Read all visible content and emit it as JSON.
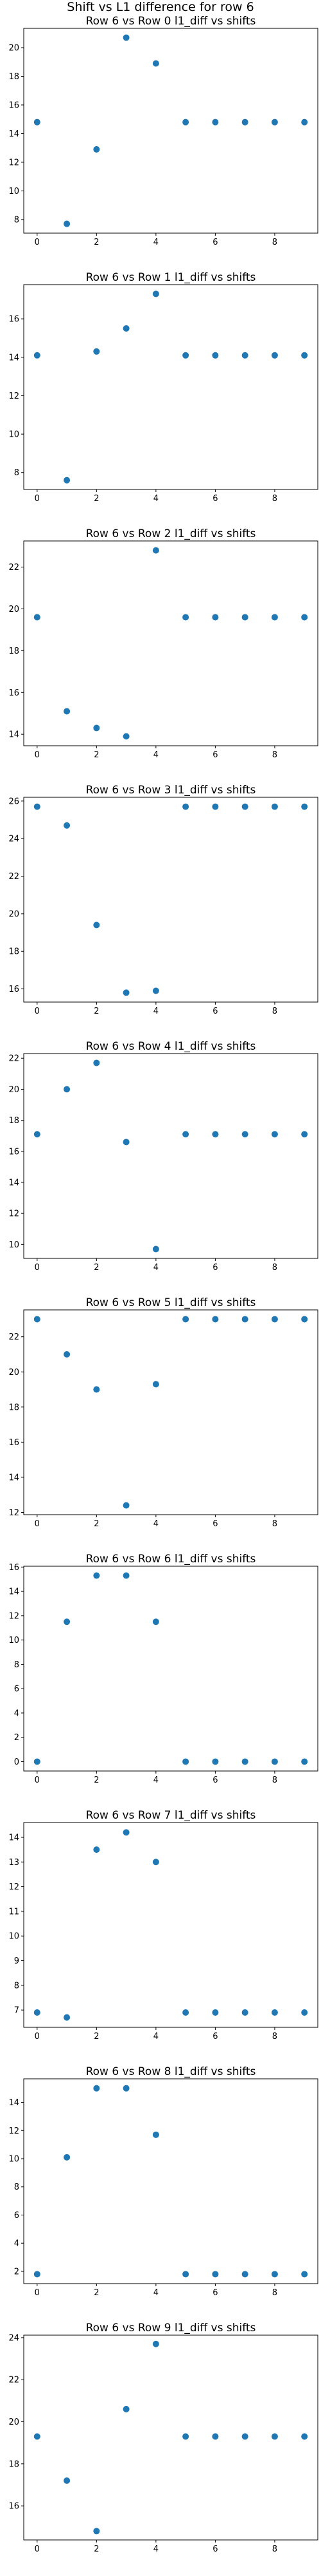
{
  "figure": {
    "suptitle": "Shift vs L1 difference for row 6"
  },
  "colors": {
    "marker": "#1f77b4",
    "axes": "#000000",
    "background": "#ffffff"
  },
  "chart_data": [
    {
      "type": "scatter",
      "title": "Row 6 vs Row 0 l1_diff vs shifts",
      "x": [
        0,
        1,
        2,
        3,
        4,
        5,
        6,
        7,
        8,
        9
      ],
      "y": [
        14.8,
        7.7,
        12.9,
        20.7,
        18.9,
        14.8,
        14.8,
        14.8,
        14.8,
        14.8
      ],
      "xticks": [
        0,
        2,
        4,
        6,
        8
      ],
      "yticks": [
        8,
        10,
        12,
        14,
        16,
        18,
        20
      ],
      "xlim": [
        -0.45,
        9.45
      ],
      "ylim": [
        7.05,
        21.35
      ],
      "grid": false
    },
    {
      "type": "scatter",
      "title": "Row 6 vs Row 1 l1_diff vs shifts",
      "x": [
        0,
        1,
        2,
        3,
        4,
        5,
        6,
        7,
        8,
        9
      ],
      "y": [
        14.1,
        7.6,
        14.3,
        15.5,
        17.3,
        14.1,
        14.1,
        14.1,
        14.1,
        14.1
      ],
      "xticks": [
        0,
        2,
        4,
        6,
        8
      ],
      "yticks": [
        8,
        10,
        12,
        14,
        16
      ],
      "xlim": [
        -0.45,
        9.45
      ],
      "ylim": [
        7.12,
        17.78
      ],
      "grid": false
    },
    {
      "type": "scatter",
      "title": "Row 6 vs Row 2 l1_diff vs shifts",
      "x": [
        0,
        1,
        2,
        3,
        4,
        5,
        6,
        7,
        8,
        9
      ],
      "y": [
        19.6,
        15.1,
        14.3,
        13.9,
        22.8,
        19.6,
        19.6,
        19.6,
        19.6,
        19.6
      ],
      "xticks": [
        0,
        2,
        4,
        6,
        8
      ],
      "yticks": [
        14,
        16,
        18,
        20,
        22
      ],
      "xlim": [
        -0.45,
        9.45
      ],
      "ylim": [
        13.45,
        23.25
      ],
      "grid": false
    },
    {
      "type": "scatter",
      "title": "Row 6 vs Row 3 l1_diff vs shifts",
      "x": [
        0,
        1,
        2,
        3,
        4,
        5,
        6,
        7,
        8,
        9
      ],
      "y": [
        25.7,
        24.7,
        19.4,
        15.8,
        15.9,
        25.7,
        25.7,
        25.7,
        25.7,
        25.7
      ],
      "xticks": [
        0,
        2,
        4,
        6,
        8
      ],
      "yticks": [
        16,
        18,
        20,
        22,
        24,
        26
      ],
      "xlim": [
        -0.45,
        9.45
      ],
      "ylim": [
        15.3,
        26.2
      ],
      "grid": false
    },
    {
      "type": "scatter",
      "title": "Row 6 vs Row 4 l1_diff vs shifts",
      "x": [
        0,
        1,
        2,
        3,
        4,
        5,
        6,
        7,
        8,
        9
      ],
      "y": [
        17.1,
        20.0,
        21.7,
        16.6,
        9.7,
        17.1,
        17.1,
        17.1,
        17.1,
        17.1
      ],
      "xticks": [
        0,
        2,
        4,
        6,
        8
      ],
      "yticks": [
        10,
        12,
        14,
        16,
        18,
        20,
        22
      ],
      "xlim": [
        -0.45,
        9.45
      ],
      "ylim": [
        9.1,
        22.3
      ],
      "grid": false
    },
    {
      "type": "scatter",
      "title": "Row 6 vs Row 5 l1_diff vs shifts",
      "x": [
        0,
        1,
        2,
        3,
        4,
        5,
        6,
        7,
        8,
        9
      ],
      "y": [
        23.0,
        21.0,
        19.0,
        12.4,
        19.3,
        23.0,
        23.0,
        23.0,
        23.0,
        23.0
      ],
      "xticks": [
        0,
        2,
        4,
        6,
        8
      ],
      "yticks": [
        12,
        14,
        16,
        18,
        20,
        22
      ],
      "xlim": [
        -0.45,
        9.45
      ],
      "ylim": [
        11.87,
        23.53
      ],
      "grid": false
    },
    {
      "type": "scatter",
      "title": "Row 6 vs Row 6 l1_diff vs shifts",
      "x": [
        0,
        1,
        2,
        3,
        4,
        5,
        6,
        7,
        8,
        9
      ],
      "y": [
        0.0,
        11.5,
        15.3,
        15.3,
        11.5,
        0.0,
        0.0,
        0.0,
        0.0,
        0.0
      ],
      "xticks": [
        0,
        2,
        4,
        6,
        8
      ],
      "yticks": [
        0,
        2,
        4,
        6,
        8,
        10,
        12,
        14,
        16
      ],
      "xlim": [
        -0.45,
        9.45
      ],
      "ylim": [
        -0.77,
        16.07
      ],
      "grid": false
    },
    {
      "type": "scatter",
      "title": "Row 6 vs Row 7 l1_diff vs shifts",
      "x": [
        0,
        1,
        2,
        3,
        4,
        5,
        6,
        7,
        8,
        9
      ],
      "y": [
        6.9,
        6.7,
        13.5,
        14.2,
        13.0,
        6.9,
        6.9,
        6.9,
        6.9,
        6.9
      ],
      "xticks": [
        0,
        2,
        4,
        6,
        8
      ],
      "yticks": [
        7,
        8,
        9,
        10,
        11,
        12,
        13,
        14
      ],
      "xlim": [
        -0.45,
        9.45
      ],
      "ylim": [
        6.3,
        14.6
      ],
      "grid": false
    },
    {
      "type": "scatter",
      "title": "Row 6 vs Row 8 l1_diff vs shifts",
      "x": [
        0,
        1,
        2,
        3,
        4,
        5,
        6,
        7,
        8,
        9
      ],
      "y": [
        1.8,
        10.1,
        15.0,
        15.0,
        11.7,
        1.8,
        1.8,
        1.8,
        1.8,
        1.8
      ],
      "xticks": [
        0,
        2,
        4,
        6,
        8
      ],
      "yticks": [
        2,
        4,
        6,
        8,
        10,
        12,
        14
      ],
      "xlim": [
        -0.45,
        9.45
      ],
      "ylim": [
        1.13,
        15.67
      ],
      "grid": false
    },
    {
      "type": "scatter",
      "title": "Row 6 vs Row 9 l1_diff vs shifts",
      "x": [
        0,
        1,
        2,
        3,
        4,
        5,
        6,
        7,
        8,
        9
      ],
      "y": [
        19.3,
        17.2,
        14.8,
        20.6,
        23.7,
        19.3,
        19.3,
        19.3,
        19.3,
        19.3
      ],
      "xticks": [
        0,
        2,
        4,
        6,
        8
      ],
      "yticks": [
        16,
        18,
        20,
        22,
        24
      ],
      "xlim": [
        -0.45,
        9.45
      ],
      "ylim": [
        14.38,
        24.12
      ],
      "grid": false
    }
  ]
}
